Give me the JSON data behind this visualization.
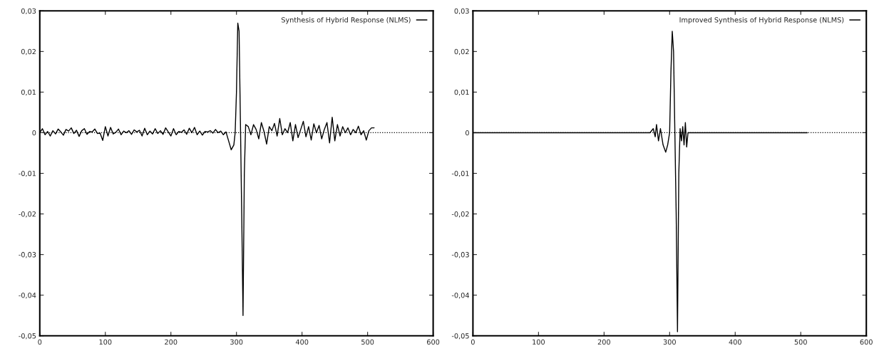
{
  "chart_data": [
    {
      "type": "line",
      "xlim": [
        0,
        600
      ],
      "ylim": [
        -0.05,
        0.03
      ],
      "xticks": [
        0,
        100,
        200,
        300,
        400,
        500,
        600
      ],
      "yticks": [
        {
          "value": 0.03,
          "label": "0,03"
        },
        {
          "value": 0.02,
          "label": "0,02"
        },
        {
          "value": 0.01,
          "label": "0,01"
        },
        0,
        {
          "value": -0.01,
          "label": "-0,01"
        },
        {
          "value": -0.02,
          "label": "-0,02"
        },
        {
          "value": -0.03,
          "label": "-0,03"
        },
        {
          "value": -0.04,
          "label": "-0,04"
        },
        {
          "value": -0.05,
          "label": "-0,05"
        }
      ],
      "grid": false,
      "legend": "top right",
      "ref_lines": [
        {
          "axis": "y",
          "value": 0,
          "color": "#000000",
          "line_style": "dotted"
        }
      ],
      "series": [
        {
          "name": "Synthesis of Hybrid Response (NLMS)",
          "color": "#000000",
          "x": [
            0,
            4,
            8,
            12,
            16,
            20,
            24,
            28,
            32,
            36,
            40,
            44,
            48,
            52,
            56,
            60,
            64,
            68,
            72,
            76,
            80,
            84,
            88,
            92,
            96,
            100,
            104,
            108,
            112,
            116,
            120,
            124,
            128,
            132,
            136,
            140,
            144,
            148,
            152,
            156,
            160,
            164,
            168,
            172,
            176,
            180,
            184,
            188,
            192,
            196,
            200,
            204,
            208,
            212,
            216,
            220,
            224,
            228,
            232,
            236,
            240,
            244,
            248,
            252,
            256,
            260,
            264,
            268,
            272,
            276,
            280,
            284,
            288,
            292,
            296,
            298,
            300,
            302,
            304,
            306,
            308,
            310,
            312,
            314,
            318,
            322,
            326,
            330,
            334,
            338,
            342,
            346,
            350,
            354,
            358,
            362,
            366,
            370,
            374,
            378,
            382,
            386,
            390,
            394,
            398,
            402,
            406,
            410,
            414,
            418,
            422,
            426,
            430,
            434,
            438,
            442,
            446,
            450,
            454,
            458,
            462,
            466,
            470,
            474,
            478,
            482,
            486,
            490,
            494,
            498,
            502,
            506,
            510
          ],
          "values": [
            0,
            0.001,
            -0.0005,
            0.0003,
            -0.0008,
            0.0005,
            -0.0003,
            0.0009,
            0.0002,
            -0.0006,
            0.0008,
            0.0004,
            0.0012,
            -0.0002,
            0.0006,
            -0.0009,
            0.0005,
            0.001,
            -0.0004,
            0.0003,
            0.0002,
            0.0009,
            -0.0002,
            -0.0001,
            -0.0019,
            0.0015,
            -0.0008,
            0.0013,
            -0.0003,
            0.0001,
            0.0009,
            -0.0005,
            0.0004,
            0.0,
            0.0005,
            -0.0004,
            0.0007,
            0.0002,
            0.0006,
            -0.0008,
            0.0011,
            -0.0005,
            0.0004,
            -0.0003,
            0.001,
            -0.0002,
            0.0005,
            -0.0004,
            0.0012,
            0.0002,
            -0.0008,
            0.001,
            -0.0005,
            0.0003,
            0.0001,
            0.0007,
            -0.0004,
            0.0011,
            0.0,
            0.0013,
            -0.0005,
            0.0004,
            -0.0006,
            0.0003,
            0.0002,
            0.0005,
            -0.0001,
            0.0008,
            0.0,
            0.0004,
            -0.0005,
            0.0002,
            -0.002,
            -0.0042,
            -0.003,
            0.0,
            0.01,
            0.027,
            0.025,
            0.003,
            -0.02,
            -0.045,
            -0.01,
            0.002,
            0.0015,
            -0.0005,
            0.002,
            0.0008,
            -0.0015,
            0.0025,
            0.0003,
            -0.0028,
            0.0015,
            0.0005,
            0.0023,
            -0.0008,
            0.0035,
            -0.0005,
            0.001,
            0.0,
            0.0025,
            -0.002,
            0.002,
            -0.0012,
            0.0008,
            0.0028,
            -0.001,
            0.0015,
            -0.0018,
            0.0022,
            0.0,
            0.0018,
            -0.0015,
            0.0008,
            0.0025,
            -0.0025,
            0.0038,
            -0.002,
            0.002,
            -0.0008,
            0.0015,
            0.0,
            0.0012,
            -0.0005,
            0.0008,
            0.0,
            0.0016,
            -0.0005,
            0.0005,
            -0.0018,
            0.0005,
            0.0012,
            0.0012
          ]
        }
      ]
    },
    {
      "type": "line",
      "xlim": [
        0,
        600
      ],
      "ylim": [
        -0.05,
        0.03
      ],
      "xticks": [
        0,
        100,
        200,
        300,
        400,
        500,
        600
      ],
      "yticks": [
        {
          "value": 0.03,
          "label": "0,03"
        },
        {
          "value": 0.02,
          "label": "0,02"
        },
        {
          "value": 0.01,
          "label": "0,01"
        },
        0,
        {
          "value": -0.01,
          "label": "-0,01"
        },
        {
          "value": -0.02,
          "label": "-0,02"
        },
        {
          "value": -0.03,
          "label": "-0,03"
        },
        {
          "value": -0.04,
          "label": "-0,04"
        },
        {
          "value": -0.05,
          "label": "-0,05"
        }
      ],
      "grid": false,
      "legend": "top right",
      "ref_lines": [
        {
          "axis": "y",
          "value": 0,
          "color": "#000000",
          "line_style": "dotted"
        }
      ],
      "series": [
        {
          "name": "Improved Synthesis of Hybrid Response (NLMS)",
          "color": "#000000",
          "x": [
            0,
            100,
            200,
            270,
            275,
            278,
            280,
            283,
            286,
            290,
            294,
            297,
            300,
            302,
            304,
            306,
            308,
            310,
            312,
            314,
            316,
            318,
            320,
            322,
            324,
            326,
            328,
            335,
            400,
            510
          ],
          "values": [
            0,
            0,
            0,
            0,
            0.001,
            -0.001,
            0.002,
            -0.002,
            0.001,
            -0.003,
            -0.0048,
            -0.003,
            0.0,
            0.015,
            0.025,
            0.02,
            0.0,
            -0.02,
            -0.049,
            -0.01,
            0.001,
            -0.002,
            0.0015,
            -0.003,
            0.0025,
            -0.0035,
            0.0,
            0,
            0,
            0
          ]
        }
      ]
    }
  ]
}
